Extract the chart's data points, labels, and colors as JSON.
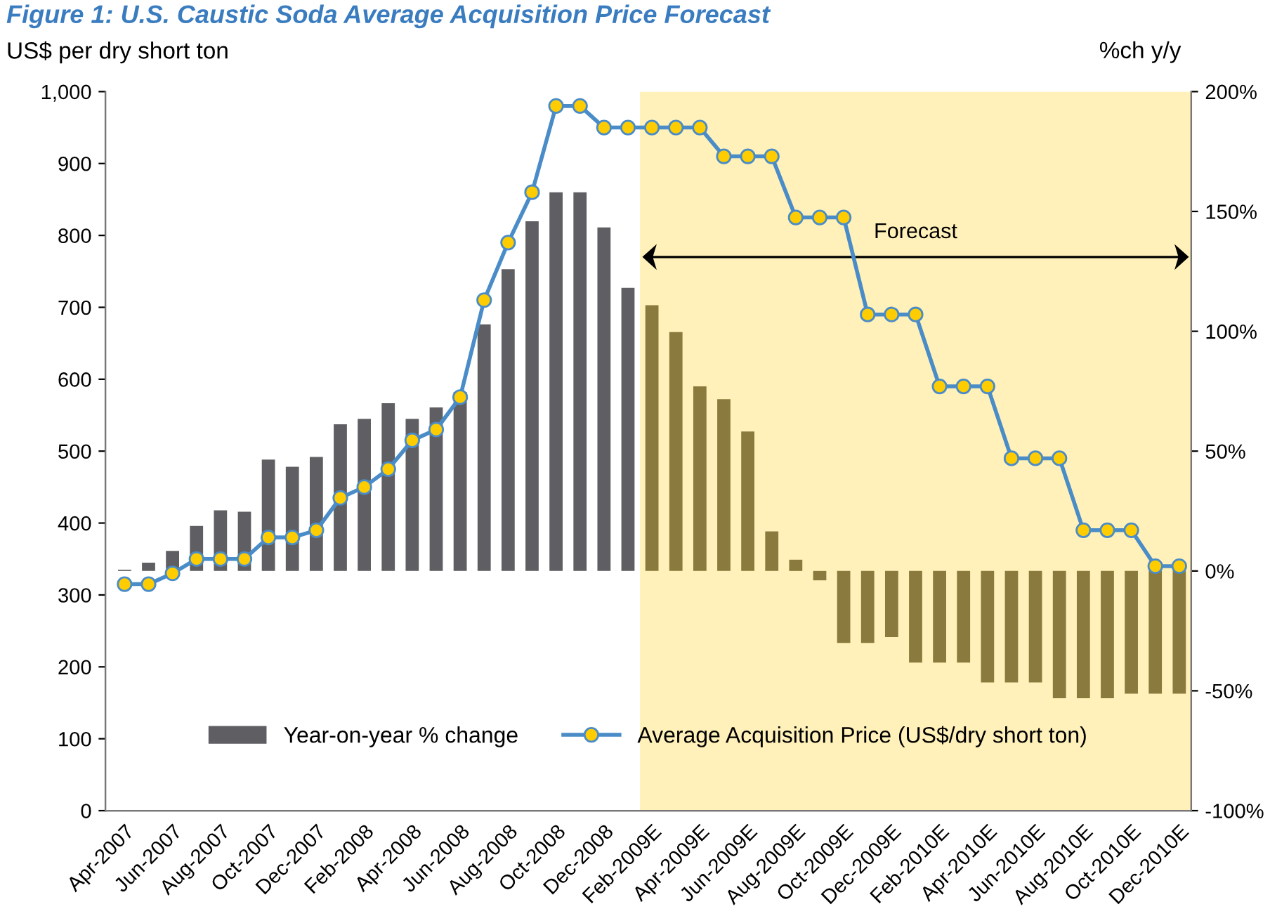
{
  "chart_data": {
    "type": "bar",
    "title": "Figure 1: U.S. Caustic Soda Average Acquisition Price Forecast",
    "ylabel": "US$ per dry short ton",
    "y2label": "%ch y/y",
    "categories": [
      "Apr-2007",
      null,
      "Jun-2007",
      null,
      "Aug-2007",
      null,
      "Oct-2007",
      null,
      "Dec-2007",
      null,
      "Feb-2008",
      null,
      "Apr-2008",
      null,
      "Jun-2008",
      null,
      "Aug-2008",
      null,
      "Oct-2008",
      null,
      "Dec-2008",
      null,
      "Feb-2009E",
      null,
      "Apr-2009E",
      null,
      "Jun-2009E",
      null,
      "Aug-2009E",
      null,
      "Oct-2009E",
      null,
      "Dec-2009E",
      null,
      "Feb-2010E",
      null,
      "Apr-2010E",
      null,
      "Jun-2010E",
      null,
      "Aug-2010E",
      null,
      "Oct-2010E",
      null,
      "Dec-2010E"
    ],
    "series": [
      {
        "name": "Year-on-year % change",
        "axis": "y2",
        "color": "#5f5f63",
        "colors": [
          "#5f5f63",
          "#5f5f63",
          "#5f5f63",
          "#5f5f63",
          "#5f5f63",
          "#5f5f63",
          "#5f5f63",
          "#5f5f63",
          "#5f5f63",
          "#5f5f63",
          "#5f5f63",
          "#5f5f63",
          "#5f5f63",
          "#5f5f63",
          "#5f5f63",
          "#5f5f63",
          "#5f5f63",
          "#5f5f63",
          "#5f5f63",
          "#5f5f63",
          "#5f5f63",
          "#5f5f63",
          "#8a7a3e",
          "#8a7a3e",
          "#8a7a3e",
          "#8a7a3e",
          "#8a7a3e",
          "#8a7a3e",
          "#8a7a3e",
          "#8a7a3e",
          "#8a7a3e",
          "#8a7a3e",
          "#8a7a3e",
          "#8a7a3e",
          "#8a7a3e",
          "#8a7a3e",
          "#8a7a3e",
          "#8a7a3e",
          "#8a7a3e",
          "#8a7a3e",
          "#8a7a3e",
          "#8a7a3e",
          "#8a7a3e",
          "#8a7a3e",
          "#8a7a3e"
        ],
        "values": [
          0.5,
          3.5,
          8.4,
          18.8,
          25.3,
          24.7,
          46.5,
          43.5,
          47.6,
          61.2,
          63.5,
          70,
          63.5,
          68.2,
          74.7,
          102.9,
          125.9,
          145.9,
          158,
          158,
          143.3,
          118.1,
          110.9,
          99.7,
          77,
          71.7,
          58.2,
          16.5,
          4.7,
          -3.9,
          -30,
          -30,
          -27.6,
          -38.2,
          -38.2,
          -38.2,
          -46.5,
          -46.5,
          -46.5,
          -53.1,
          -53.1,
          -53.1,
          -51.2,
          -51.2,
          -51.2
        ]
      },
      {
        "name": "Average Acquisition Price (US$/dry short ton)",
        "type": "line",
        "axis": "y",
        "color": "#4a8cc8",
        "marker": "circle",
        "line_style": "solid",
        "values": [
          315,
          315,
          330,
          350,
          350,
          350,
          380,
          380,
          390,
          435,
          450,
          475,
          515,
          530,
          575,
          710,
          790,
          860,
          980,
          980,
          950,
          950,
          950,
          950,
          950,
          910,
          910,
          910,
          825,
          825,
          825,
          690,
          690,
          690,
          590,
          590,
          590,
          490,
          490,
          490,
          390,
          390,
          390,
          340,
          340
        ]
      }
    ],
    "ylim": [
      0,
      1000
    ],
    "yticks": [
      0,
      100,
      200,
      300,
      400,
      500,
      600,
      700,
      800,
      900,
      {
        "value": 1000,
        "label": "1,000"
      }
    ],
    "y2lim": [
      -100,
      200
    ],
    "y2ticks": [
      {
        "value": -100,
        "label": "-100%"
      },
      {
        "value": -50,
        "label": "-50%"
      },
      {
        "value": 0,
        "label": "0%"
      },
      {
        "value": 50,
        "label": "50%"
      },
      {
        "value": 100,
        "label": "100%"
      },
      {
        "value": 150,
        "label": "150%"
      },
      {
        "value": 200,
        "label": "200%"
      }
    ],
    "bands": [
      {
        "axis": "x",
        "from": "Feb-2009E",
        "to": "Dec-2010E",
        "label": "Forecast",
        "color": "#ffe680"
      }
    ],
    "legend": "bottom",
    "grid": false
  }
}
